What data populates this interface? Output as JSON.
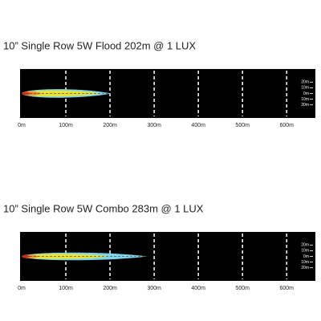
{
  "chart_data": [
    {
      "type": "beam",
      "title": "10” Single Row 5W Flood 202m  @ 1 LUX",
      "xlim": [
        0,
        665
      ],
      "ylim": [
        -43,
        43
      ],
      "xticks": [
        {
          "value": 0,
          "label": "0m"
        },
        {
          "value": 100,
          "label": "100m"
        },
        {
          "value": 200,
          "label": "200m"
        },
        {
          "value": 300,
          "label": "300m"
        },
        {
          "value": 400,
          "label": "400m"
        },
        {
          "value": 500,
          "label": "500m"
        },
        {
          "value": 600,
          "label": "600m"
        }
      ],
      "yticks": [
        {
          "value": 20,
          "label": "20m"
        },
        {
          "value": 10,
          "label": "10m"
        },
        {
          "value": 0,
          "label": "0m"
        },
        {
          "value": -10,
          "label": "10m"
        },
        {
          "value": -20,
          "label": "20m"
        }
      ],
      "zones": [
        {
          "color": "#7fd6ea",
          "length": 202,
          "width": 10
        },
        {
          "color": "#e8e23a",
          "length": 180,
          "width": 7
        },
        {
          "color": "#f08a2a",
          "length": 45,
          "width": 5
        },
        {
          "color": "#d42a1e",
          "length": 20,
          "width": 3
        }
      ]
    },
    {
      "type": "beam",
      "title": "10” Single Row 5W Combo 283m  @ 1 LUX",
      "xlim": [
        0,
        665
      ],
      "ylim": [
        -43,
        43
      ],
      "xticks": [
        {
          "value": 0,
          "label": "0m"
        },
        {
          "value": 100,
          "label": "100m"
        },
        {
          "value": 200,
          "label": "200m"
        },
        {
          "value": 300,
          "label": "300m"
        },
        {
          "value": 400,
          "label": "400m"
        },
        {
          "value": 500,
          "label": "500m"
        },
        {
          "value": 600,
          "label": "600m"
        }
      ],
      "yticks": [
        {
          "value": 20,
          "label": "20m"
        },
        {
          "value": 10,
          "label": "10m"
        },
        {
          "value": 0,
          "label": "0m"
        },
        {
          "value": -10,
          "label": "10m"
        },
        {
          "value": -20,
          "label": "20m"
        }
      ],
      "zones": [
        {
          "color": "#7fd6ea",
          "length": 283,
          "width": 9
        },
        {
          "color": "#e8e23a",
          "length": 200,
          "width": 6
        },
        {
          "color": "#f08a2a",
          "length": 40,
          "width": 4
        },
        {
          "color": "#d42a1e",
          "length": 20,
          "width": 3
        }
      ]
    }
  ]
}
